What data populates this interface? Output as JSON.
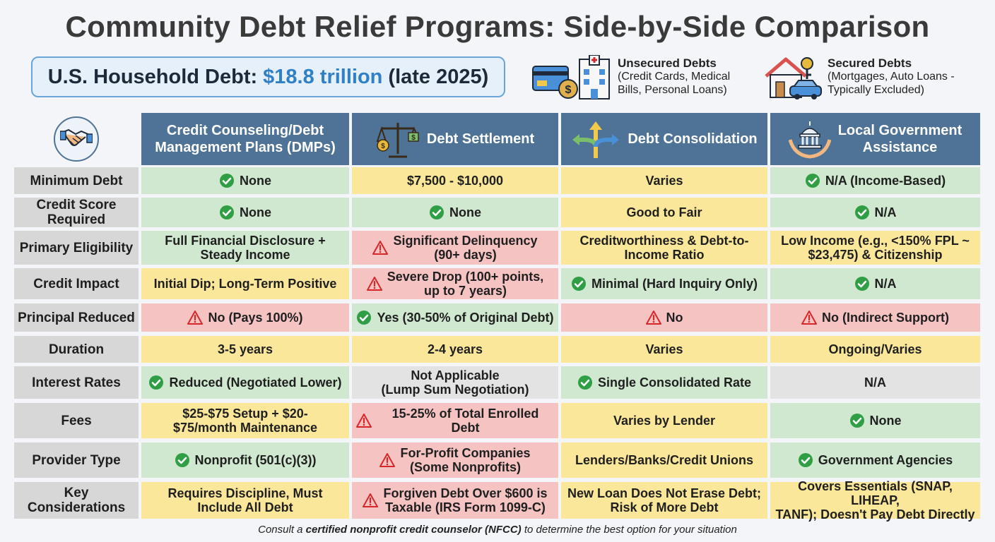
{
  "title": "Community Debt Relief Programs: Side-by-Side Comparison",
  "household_debt": {
    "label": "U.S. Household Debt:",
    "amount": "$18.8 trillion",
    "note": "(late 2025)"
  },
  "legend": [
    {
      "title": "Unsecured Debts",
      "line1": "(Credit Cards, Medical",
      "line2": "Bills, Personal Loans)",
      "icon": "credit-card-hospital-icon"
    },
    {
      "title": "Secured Debts",
      "line1": "(Mortgages, Auto Loans -",
      "line2": "Typically Excluded)",
      "icon": "house-car-keys-icon"
    }
  ],
  "columns": [
    {
      "line1": "Credit Counseling/Debt",
      "line2": "Management Plans (DMPs)",
      "icon": "handshake-icon"
    },
    {
      "line1": "Debt Settlement",
      "line2": "",
      "icon": "scales-money-icon"
    },
    {
      "line1": "Debt Consolidation",
      "line2": "",
      "icon": "merging-arrows-icon"
    },
    {
      "line1": "Local Government",
      "line2": "Assistance",
      "icon": "government-hands-icon"
    }
  ],
  "rows": [
    {
      "label": [
        "Minimum Debt"
      ],
      "cells": [
        {
          "text": [
            "None"
          ],
          "status": "check",
          "color": "green"
        },
        {
          "text": [
            "$7,500 - $10,000"
          ],
          "status": "",
          "color": "yellow"
        },
        {
          "text": [
            "Varies"
          ],
          "status": "",
          "color": "yellow"
        },
        {
          "text": [
            "N/A (Income-Based)"
          ],
          "status": "check",
          "color": "green"
        }
      ]
    },
    {
      "label": [
        "Credit Score",
        "Required"
      ],
      "cells": [
        {
          "text": [
            "None"
          ],
          "status": "check",
          "color": "green"
        },
        {
          "text": [
            "None"
          ],
          "status": "check",
          "color": "green"
        },
        {
          "text": [
            "Good to Fair"
          ],
          "status": "",
          "color": "yellow"
        },
        {
          "text": [
            "N/A"
          ],
          "status": "check",
          "color": "green"
        }
      ]
    },
    {
      "label": [
        "Primary Eligibility"
      ],
      "cells": [
        {
          "text": [
            "Full Financial Disclosure +",
            "Steady Income"
          ],
          "status": "",
          "color": "green"
        },
        {
          "text": [
            "Significant Delinquency",
            "(90+ days)"
          ],
          "status": "warn",
          "color": "red"
        },
        {
          "text": [
            "Creditworthiness & Debt-to-",
            "Income Ratio"
          ],
          "status": "",
          "color": "yellow"
        },
        {
          "text": [
            "Low Income (e.g., <150% FPL ~",
            "$23,475) & Citizenship"
          ],
          "status": "",
          "color": "yellow"
        }
      ]
    },
    {
      "label": [
        "Credit Impact"
      ],
      "cells": [
        {
          "text": [
            "Initial Dip; Long-Term Positive"
          ],
          "status": "",
          "color": "yellow"
        },
        {
          "text": [
            "Severe Drop (100+ points,",
            "up to 7 years)"
          ],
          "status": "warn",
          "color": "red"
        },
        {
          "text": [
            "Minimal (Hard Inquiry Only)"
          ],
          "status": "check",
          "color": "green"
        },
        {
          "text": [
            "N/A"
          ],
          "status": "check",
          "color": "green"
        }
      ]
    },
    {
      "label": [
        "Principal Reduced"
      ],
      "cells": [
        {
          "text": [
            "No (Pays 100%)"
          ],
          "status": "warn",
          "color": "red"
        },
        {
          "text": [
            "Yes (30-50% of Original Debt)"
          ],
          "status": "check",
          "color": "green"
        },
        {
          "text": [
            "No"
          ],
          "status": "warn",
          "color": "red"
        },
        {
          "text": [
            "No (Indirect Support)"
          ],
          "status": "warn",
          "color": "red"
        }
      ]
    },
    {
      "label": [
        "Duration"
      ],
      "cells": [
        {
          "text": [
            "3-5 years"
          ],
          "status": "",
          "color": "yellow"
        },
        {
          "text": [
            "2-4 years"
          ],
          "status": "",
          "color": "yellow"
        },
        {
          "text": [
            "Varies"
          ],
          "status": "",
          "color": "yellow"
        },
        {
          "text": [
            "Ongoing/Varies"
          ],
          "status": "",
          "color": "yellow"
        }
      ]
    },
    {
      "label": [
        "Interest Rates"
      ],
      "cells": [
        {
          "text": [
            "Reduced (Negotiated Lower)"
          ],
          "status": "check",
          "color": "green"
        },
        {
          "text": [
            "Not Applicable",
            "(Lump Sum Negotiation)"
          ],
          "status": "",
          "color": "gray"
        },
        {
          "text": [
            "Single Consolidated Rate"
          ],
          "status": "check",
          "color": "green"
        },
        {
          "text": [
            "N/A"
          ],
          "status": "",
          "color": "gray"
        }
      ]
    },
    {
      "label": [
        "Fees"
      ],
      "cells": [
        {
          "text": [
            "$25-$75 Setup + $20-",
            "$75/month Maintenance"
          ],
          "status": "",
          "color": "yellow"
        },
        {
          "text": [
            "15-25% of Total Enrolled Debt"
          ],
          "status": "warn",
          "color": "red"
        },
        {
          "text": [
            "Varies by Lender"
          ],
          "status": "",
          "color": "yellow"
        },
        {
          "text": [
            "None"
          ],
          "status": "check",
          "color": "green"
        }
      ]
    },
    {
      "label": [
        "Provider Type"
      ],
      "cells": [
        {
          "text": [
            "Nonprofit (501(c)(3))"
          ],
          "status": "check",
          "color": "green"
        },
        {
          "text": [
            "For-Profit Companies",
            "(Some Nonprofits)"
          ],
          "status": "warn",
          "color": "red"
        },
        {
          "text": [
            "Lenders/Banks/Credit Unions"
          ],
          "status": "",
          "color": "yellow"
        },
        {
          "text": [
            "Government Agencies"
          ],
          "status": "check",
          "color": "green"
        }
      ]
    },
    {
      "label": [
        "Key Considerations"
      ],
      "cells": [
        {
          "text": [
            "Requires Discipline, Must",
            "Include All Debt"
          ],
          "status": "",
          "color": "yellow"
        },
        {
          "text": [
            "Forgiven Debt Over $600 is",
            "Taxable (IRS Form 1099-C)"
          ],
          "status": "warn",
          "color": "red"
        },
        {
          "text": [
            "New Loan Does Not Erase Debt;",
            "Risk of More Debt"
          ],
          "status": "",
          "color": "yellow"
        },
        {
          "text": [
            "Covers Essentials (SNAP, LIHEAP,",
            "TANF); Doesn't Pay Debt Directly"
          ],
          "status": "",
          "color": "yellow"
        }
      ]
    }
  ],
  "footer": {
    "pre": "Consult a",
    "bold": "certified nonprofit credit counselor (NFCC)",
    "post": "to determine the best option for your situation"
  },
  "colors": {
    "header": "#4f7396",
    "green": "#cfe8cf",
    "yellow": "#fbe79a",
    "red": "#f6c3c3",
    "gray": "#e3e3e3",
    "check": "#2f9e44",
    "warn": "#d62828"
  }
}
